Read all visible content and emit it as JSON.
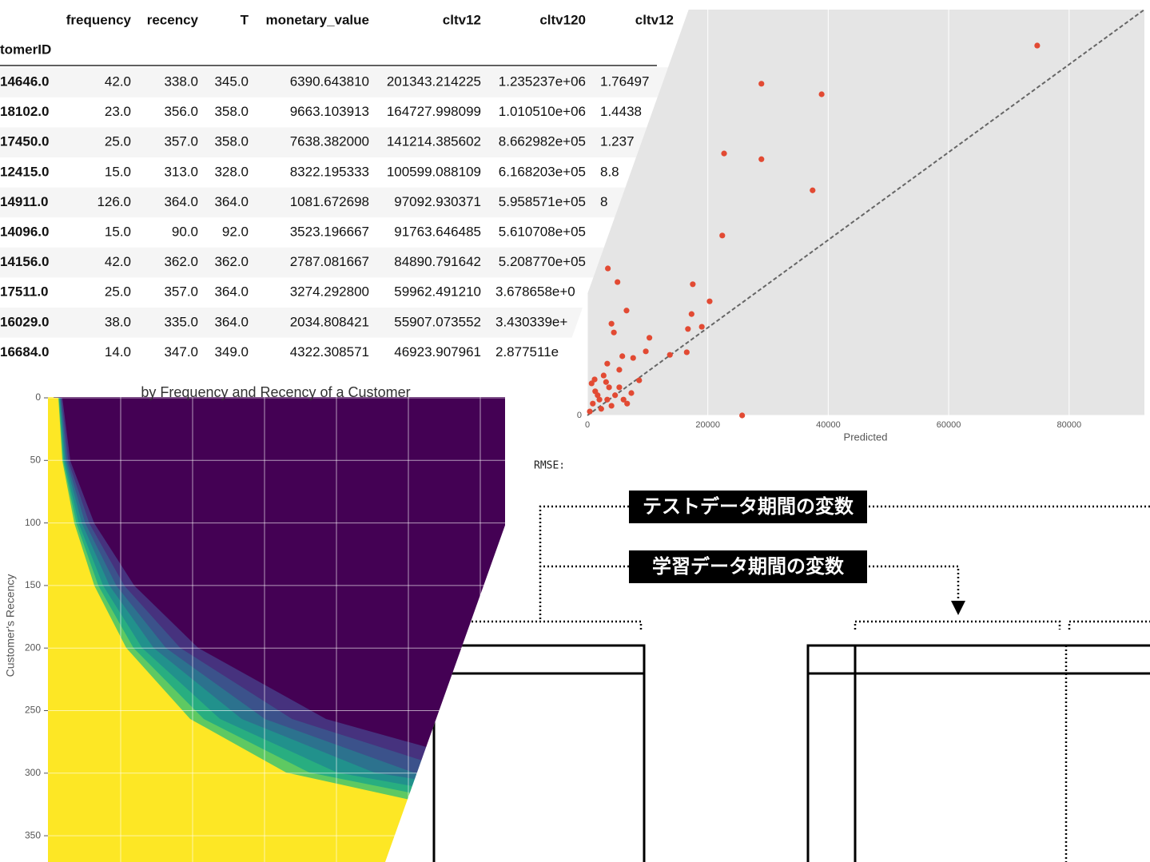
{
  "table": {
    "index_name": "tomerID",
    "columns": [
      "frequency",
      "recency",
      "T",
      "monetary_value",
      "cltv12",
      "cltv120",
      "cltv12"
    ],
    "rows": [
      [
        "14646.0",
        "42.0",
        "338.0",
        "345.0",
        "6390.643810",
        "201343.214225",
        "1.235237e+06",
        "1.76497"
      ],
      [
        "18102.0",
        "23.0",
        "356.0",
        "358.0",
        "9663.103913",
        "164727.998099",
        "1.010510e+06",
        "1.4438"
      ],
      [
        "17450.0",
        "25.0",
        "357.0",
        "358.0",
        "7638.382000",
        "141214.385602",
        "8.662982e+05",
        "1.237"
      ],
      [
        "12415.0",
        "15.0",
        "313.0",
        "328.0",
        "8322.195333",
        "100599.088109",
        "6.168203e+05",
        "8.8"
      ],
      [
        "14911.0",
        "126.0",
        "364.0",
        "364.0",
        "1081.672698",
        "97092.930371",
        "5.958571e+05",
        "8"
      ],
      [
        "14096.0",
        "15.0",
        "90.0",
        "92.0",
        "3523.196667",
        "91763.646485",
        "5.610708e+05",
        null
      ],
      [
        "14156.0",
        "42.0",
        "362.0",
        "362.0",
        "2787.081667",
        "84890.791642",
        "5.208770e+05",
        null
      ],
      [
        "17511.0",
        "25.0",
        "357.0",
        "364.0",
        "3274.292800",
        "59962.491210",
        "3.678658e+0",
        null
      ],
      [
        "16029.0",
        "38.0",
        "335.0",
        "364.0",
        "2034.808421",
        "55907.073552",
        "3.430339e+",
        null
      ],
      [
        "16684.0",
        "14.0",
        "347.0",
        "349.0",
        "4322.308571",
        "46923.907961",
        "2.877511e",
        null
      ]
    ]
  },
  "chart_data": [
    {
      "type": "scatter",
      "xlabel": "Predicted",
      "color": "#e24a33",
      "xlim": [
        0,
        92500
      ],
      "ylim": [
        0,
        92500
      ],
      "xticks": [
        0,
        20000,
        40000,
        60000,
        80000
      ],
      "yticks": [
        0
      ],
      "x": [
        74700,
        28900,
        38900,
        22700,
        28900,
        37400,
        22400,
        3400,
        5000,
        17500,
        20300,
        6500,
        17300,
        4000,
        19000,
        16700,
        4400,
        10300,
        16500,
        9700,
        13700,
        7600,
        5800,
        3300,
        5300,
        8600,
        25700,
        700,
        1300,
        2000,
        2700,
        3600,
        4600,
        900,
        2300,
        4000,
        6000,
        400,
        1700,
        3100,
        5300,
        6600,
        7300,
        1200,
        3300
      ],
      "values": [
        84300,
        75600,
        73200,
        59700,
        58400,
        51300,
        41000,
        33500,
        30400,
        29900,
        26000,
        23900,
        23100,
        20900,
        20200,
        19700,
        18900,
        17700,
        14400,
        14600,
        13800,
        13100,
        13500,
        11800,
        10400,
        8000,
        0,
        7300,
        5500,
        3600,
        9100,
        6400,
        4600,
        2700,
        1500,
        2200,
        3600,
        900,
        4600,
        7600,
        6400,
        2700,
        5100,
        8200,
        3600
      ]
    },
    {
      "type": "heatmap",
      "title": "by Frequency and Recency of a Customer",
      "ylabel": "Customer's Recency",
      "ylim": [
        0,
        371
      ],
      "yticks": [
        0,
        50,
        100,
        150,
        200,
        250,
        300,
        350
      ]
    }
  ],
  "rmse_label": "RMSE:",
  "diagram": {
    "labels": [
      "テストデータ期間の変数",
      "学習データ期間の変数"
    ]
  }
}
